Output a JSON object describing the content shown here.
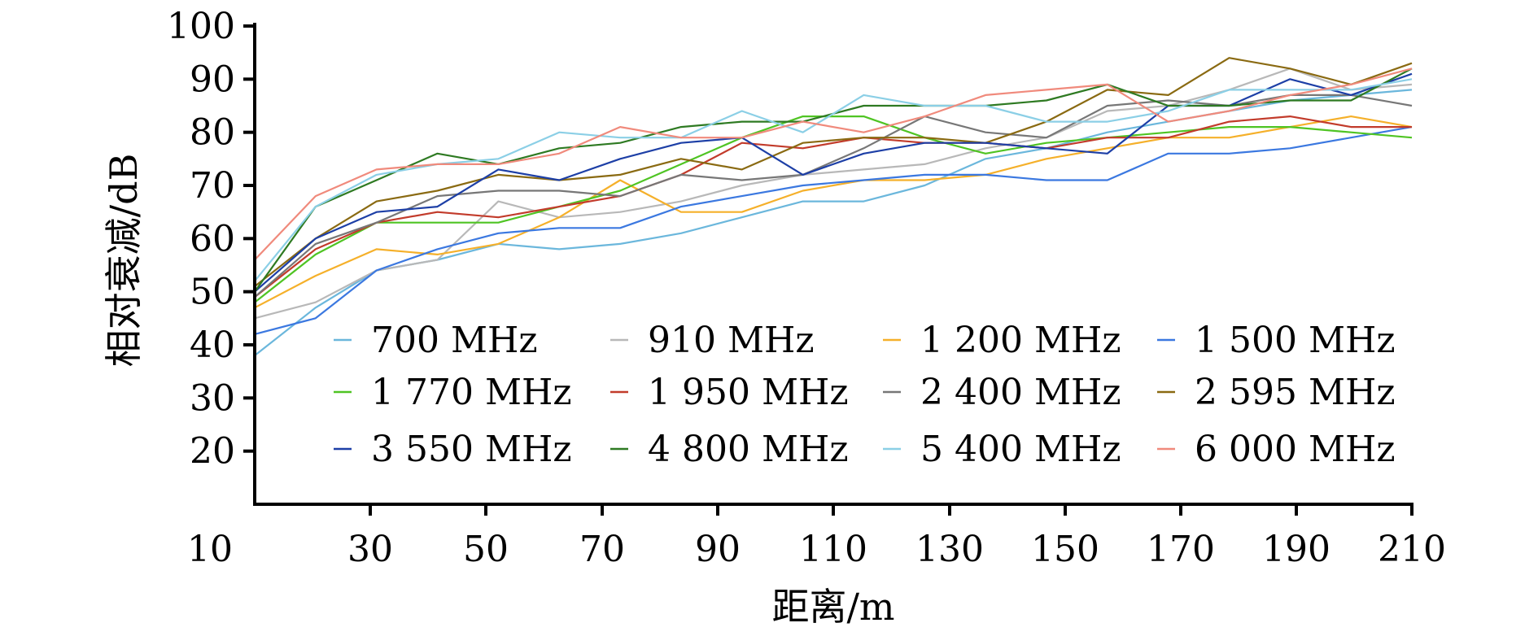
{
  "chart_data": {
    "type": "line",
    "xlabel": "距离/m",
    "ylabel": "相对衰减/dB",
    "xlim": [
      20,
      210
    ],
    "ylim": [
      10,
      100
    ],
    "x_tick_labels": [
      "10",
      "30",
      "50",
      "70",
      "90",
      "110",
      "130",
      "150",
      "170",
      "190",
      "210"
    ],
    "y_ticks": [
      20,
      30,
      40,
      50,
      60,
      70,
      80,
      90,
      100
    ],
    "grid": false,
    "legend_position": "lower-right inside plot",
    "x": [
      20,
      30,
      40,
      50,
      60,
      70,
      80,
      90,
      100,
      110,
      120,
      130,
      140,
      150,
      160,
      170,
      180,
      190,
      200,
      210
    ],
    "series": [
      {
        "name": "700 MHz",
        "color": "#6bb7dc",
        "values": [
          38,
          47,
          54,
          56,
          59,
          58,
          59,
          61,
          64,
          67,
          67,
          70,
          75,
          77,
          80,
          82,
          84,
          86,
          87,
          88
        ]
      },
      {
        "name": "910 MHz",
        "color": "#b8b8b8",
        "values": [
          45,
          48,
          54,
          56,
          67,
          64,
          65,
          67,
          70,
          72,
          73,
          74,
          77,
          79,
          84,
          85,
          88,
          92,
          88,
          89
        ]
      },
      {
        "name": "1 200 MHz",
        "color": "#f5b02a",
        "values": [
          47,
          53,
          58,
          57,
          59,
          64,
          71,
          65,
          65,
          69,
          71,
          71,
          72,
          75,
          77,
          79,
          79,
          81,
          83,
          81
        ]
      },
      {
        "name": "1 500 MHz",
        "color": "#3b78e0",
        "values": [
          42,
          45,
          54,
          58,
          61,
          62,
          62,
          66,
          68,
          70,
          71,
          72,
          72,
          71,
          71,
          76,
          76,
          77,
          79,
          81
        ]
      },
      {
        "name": "1 770 MHz",
        "color": "#4fc423",
        "values": [
          48,
          57,
          63,
          63,
          63,
          66,
          69,
          74,
          79,
          83,
          83,
          79,
          76,
          78,
          79,
          80,
          81,
          81,
          80,
          79
        ]
      },
      {
        "name": "1 950 MHz",
        "color": "#c23b2b",
        "values": [
          49,
          58,
          63,
          65,
          64,
          66,
          68,
          72,
          78,
          77,
          79,
          78,
          78,
          77,
          79,
          79,
          82,
          83,
          81,
          81
        ]
      },
      {
        "name": "2 400 MHz",
        "color": "#777777",
        "values": [
          49,
          59,
          63,
          68,
          69,
          69,
          68,
          72,
          71,
          72,
          77,
          83,
          80,
          79,
          85,
          86,
          85,
          87,
          87,
          85
        ]
      },
      {
        "name": "2 595 MHz",
        "color": "#8a6a12",
        "values": [
          51,
          60,
          67,
          69,
          72,
          71,
          72,
          75,
          73,
          78,
          79,
          79,
          78,
          82,
          88,
          87,
          94,
          92,
          89,
          93
        ]
      },
      {
        "name": "3 550 MHz",
        "color": "#1d3fa6",
        "values": [
          50,
          60,
          65,
          66,
          73,
          71,
          75,
          78,
          79,
          72,
          76,
          78,
          78,
          77,
          76,
          85,
          85,
          90,
          87,
          91
        ]
      },
      {
        "name": "4 800 MHz",
        "color": "#2e7a22",
        "values": [
          50,
          66,
          71,
          76,
          74,
          77,
          78,
          81,
          82,
          82,
          85,
          85,
          85,
          86,
          89,
          85,
          85,
          86,
          86,
          92
        ]
      },
      {
        "name": "5 400 MHz",
        "color": "#8bcfe6",
        "values": [
          52,
          66,
          72,
          74,
          75,
          80,
          79,
          79,
          84,
          80,
          87,
          85,
          85,
          82,
          82,
          84,
          88,
          88,
          88,
          90
        ]
      },
      {
        "name": "6 000 MHz",
        "color": "#f08a7c",
        "values": [
          56,
          68,
          73,
          74,
          74,
          76,
          81,
          79,
          79,
          82,
          80,
          83,
          87,
          88,
          89,
          82,
          84,
          87,
          89,
          92
        ]
      }
    ]
  }
}
